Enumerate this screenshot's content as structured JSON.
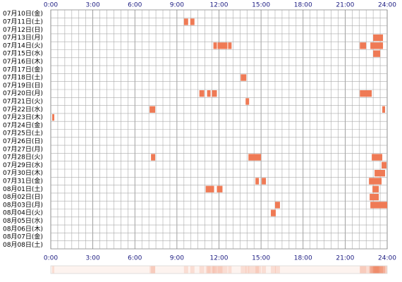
{
  "chart_data": {
    "type": "timeline",
    "xlim": [
      0,
      24
    ],
    "xticks": [
      {
        "value": 0,
        "label": "0:00"
      },
      {
        "value": 3,
        "label": "3:00"
      },
      {
        "value": 6,
        "label": "6:00"
      },
      {
        "value": 9,
        "label": "9:00"
      },
      {
        "value": 12,
        "label": "12:00"
      },
      {
        "value": 15,
        "label": "15:00"
      },
      {
        "value": 18,
        "label": "18:00"
      },
      {
        "value": 21,
        "label": "21:00"
      },
      {
        "value": 24,
        "label": "24:00"
      }
    ],
    "color": "#ef7a55",
    "categories": [
      "07月10日(金)",
      "07月11日(土)",
      "07月12日(日)",
      "07月13日(月)",
      "07月14日(火)",
      "07月15日(水)",
      "07月16日(木)",
      "07月17日(金)",
      "07月18日(土)",
      "07月19日(日)",
      "07月20日(月)",
      "07月21日(火)",
      "07月22日(水)",
      "07月23日(木)",
      "07月24日(金)",
      "07月25日(土)",
      "07月26日(日)",
      "07月27日(月)",
      "07月28日(火)",
      "07月29日(水)",
      "07月30日(木)",
      "07月31日(金)",
      "08月01日(土)",
      "08月02日(日)",
      "08月03日(月)",
      "08月04日(火)",
      "08月05日(水)",
      "08月06日(木)",
      "08月07日(金)",
      "08月08日(土)"
    ],
    "rows": [
      [],
      [
        [
          9.5,
          9.8
        ],
        [
          9.95,
          10.25
        ]
      ],
      [],
      [
        [
          23.0,
          23.7
        ]
      ],
      [
        [
          11.6,
          11.85
        ],
        [
          11.9,
          12.6
        ],
        [
          12.65,
          12.9
        ],
        [
          22.05,
          22.5
        ],
        [
          22.8,
          23.7
        ]
      ],
      [
        [
          23.0,
          23.5
        ]
      ],
      [],
      [],
      [
        [
          13.55,
          13.95
        ]
      ],
      [],
      [
        [
          10.6,
          10.95
        ],
        [
          11.15,
          11.4
        ],
        [
          11.5,
          11.85
        ],
        [
          22.05,
          22.9
        ]
      ],
      [
        [
          13.9,
          14.15
        ]
      ],
      [
        [
          7.05,
          7.45
        ],
        [
          23.65,
          23.85
        ]
      ],
      [
        [
          0.1,
          0.25
        ]
      ],
      [],
      [],
      [],
      [],
      [
        [
          7.15,
          7.45
        ],
        [
          14.1,
          15.0
        ],
        [
          22.9,
          23.65
        ]
      ],
      [
        [
          23.6,
          23.95
        ]
      ],
      [
        [
          23.1,
          23.85
        ]
      ],
      [
        [
          14.6,
          14.85
        ],
        [
          15.05,
          15.35
        ],
        [
          22.7,
          23.6
        ]
      ],
      [
        [
          11.05,
          11.65
        ],
        [
          11.85,
          12.25
        ],
        [
          22.95,
          23.4
        ]
      ],
      [
        [
          22.75,
          23.4
        ]
      ],
      [
        [
          16.0,
          16.35
        ],
        [
          22.8,
          24.0
        ]
      ],
      [
        [
          15.7,
          16.05
        ]
      ],
      [],
      [],
      [],
      []
    ]
  }
}
